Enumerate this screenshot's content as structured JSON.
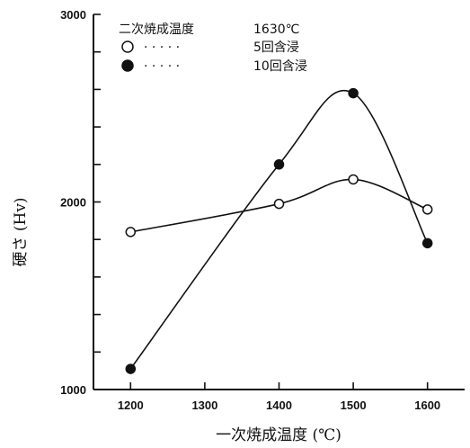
{
  "chart_data": {
    "type": "line",
    "xlabel": "一次焼成温度 (℃)",
    "ylabel": "硬さ (Hv)",
    "xlim": [
      1150,
      1650
    ],
    "ylim": [
      1000,
      3000
    ],
    "x_ticks": [
      1200,
      1300,
      1400,
      1500,
      1600
    ],
    "y_tick_labels": [
      1000,
      2000,
      3000
    ],
    "legend": {
      "placement": "top-left",
      "heading": "二次焼成温度",
      "heading_value": "1630℃",
      "dots": "· · · · ·"
    },
    "series": [
      {
        "name": "5回含浸",
        "marker": "open-circle",
        "x": [
          1200,
          1400,
          1500,
          1600
        ],
        "y": [
          1840,
          1990,
          2120,
          1960
        ]
      },
      {
        "name": "10回含浸",
        "marker": "filled-circle",
        "x": [
          1200,
          1400,
          1500,
          1600
        ],
        "y": [
          1110,
          2200,
          2580,
          1780
        ]
      }
    ]
  }
}
